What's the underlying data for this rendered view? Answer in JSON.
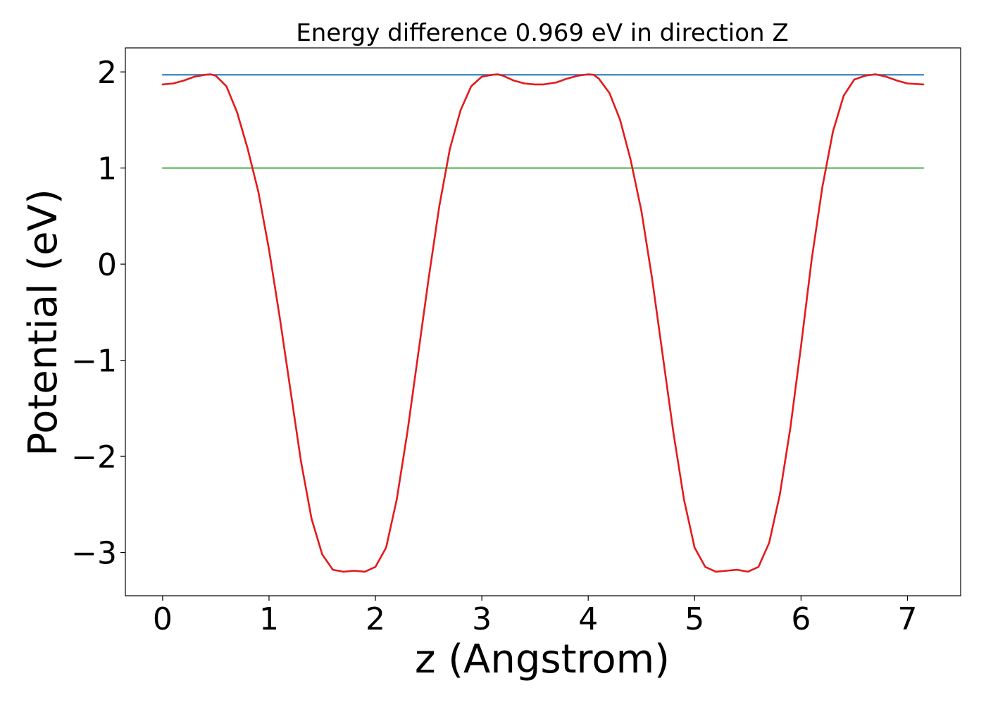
{
  "chart_data": {
    "type": "line",
    "title": "Energy difference 0.969 eV in direction Z",
    "xlabel": "z (Angstrom)",
    "ylabel": "Potential (eV)",
    "xlim": [
      -0.35,
      7.5
    ],
    "ylim": [
      -3.45,
      2.25
    ],
    "x_ticks": [
      0,
      1,
      2,
      3,
      4,
      5,
      6,
      7
    ],
    "y_ticks": [
      -3,
      -2,
      -1,
      0,
      1,
      2
    ],
    "x_tick_labels": [
      "0",
      "1",
      "2",
      "3",
      "4",
      "5",
      "6",
      "7"
    ],
    "y_tick_labels": [
      "−3",
      "−2",
      "−1",
      "0",
      "1",
      "2"
    ],
    "grid": false,
    "legend": "none",
    "series": [
      {
        "kind": "line",
        "color": "#e41a1c",
        "x": [
          0,
          0.1,
          0.2,
          0.3,
          0.4,
          0.45,
          0.5,
          0.6,
          0.7,
          0.8,
          0.9,
          1.0,
          1.1,
          1.2,
          1.3,
          1.4,
          1.5,
          1.6,
          1.7,
          1.8,
          1.9,
          2.0,
          2.1,
          2.2,
          2.3,
          2.4,
          2.5,
          2.6,
          2.7,
          2.8,
          2.9,
          3.0,
          3.1,
          3.15,
          3.2,
          3.3,
          3.4,
          3.5,
          3.58,
          3.7,
          3.8,
          3.9,
          4.0,
          4.05,
          4.1,
          4.2,
          4.3,
          4.4,
          4.5,
          4.6,
          4.7,
          4.8,
          4.9,
          5.0,
          5.1,
          5.2,
          5.3,
          5.4,
          5.5,
          5.6,
          5.7,
          5.8,
          5.9,
          6.0,
          6.1,
          6.2,
          6.3,
          6.4,
          6.5,
          6.6,
          6.7,
          6.8,
          6.9,
          7.0,
          7.15
        ],
        "y": [
          1.87,
          1.88,
          1.91,
          1.95,
          1.97,
          1.975,
          1.96,
          1.85,
          1.58,
          1.2,
          0.75,
          0.15,
          -0.55,
          -1.3,
          -2.05,
          -2.65,
          -3.02,
          -3.18,
          -3.2,
          -3.19,
          -3.2,
          -3.15,
          -2.95,
          -2.45,
          -1.75,
          -0.95,
          -0.15,
          0.6,
          1.2,
          1.6,
          1.85,
          1.95,
          1.97,
          1.975,
          1.96,
          1.91,
          1.88,
          1.87,
          1.87,
          1.89,
          1.93,
          1.96,
          1.975,
          1.97,
          1.93,
          1.78,
          1.5,
          1.08,
          0.55,
          -0.15,
          -0.95,
          -1.75,
          -2.45,
          -2.95,
          -3.15,
          -3.2,
          -3.19,
          -3.18,
          -3.2,
          -3.15,
          -2.9,
          -2.4,
          -1.7,
          -0.85,
          0.05,
          0.8,
          1.38,
          1.75,
          1.92,
          1.96,
          1.975,
          1.95,
          1.91,
          1.88,
          1.87
        ]
      },
      {
        "kind": "hline",
        "color": "#1f77b4",
        "x": [
          0,
          7.15
        ],
        "y": [
          1.97,
          1.97
        ]
      },
      {
        "kind": "hline",
        "color": "#4daf4a",
        "x": [
          0,
          7.15
        ],
        "y": [
          1.0,
          1.0
        ]
      }
    ]
  }
}
